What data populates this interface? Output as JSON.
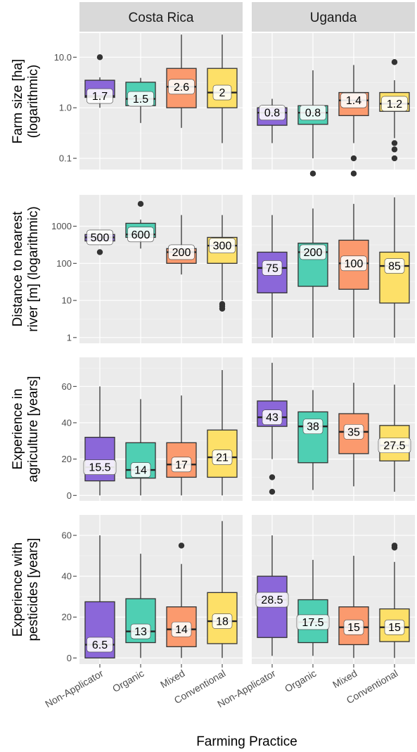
{
  "chart_data": {
    "type": "box",
    "facet_columns": [
      "Costa Rica",
      "Uganda"
    ],
    "xlabel": "Farming Practice",
    "categories": [
      "Non-Applicator",
      "Organic",
      "Mixed",
      "Conventional"
    ],
    "colors": {
      "Non-Applicator": "#8b67d9",
      "Organic": "#4fcfb3",
      "Mixed": "#fb9a6e",
      "Conventional": "#fde068"
    },
    "strip_color": "#d9d9d9",
    "panel_background": "#ebebeb",
    "grid": true,
    "panels": [
      {
        "ylabel": "Farm size [ha] (logarithmic)",
        "ylabel_lines": [
          "Farm size [ha]",
          "(logarithmic)"
        ],
        "scale": "log",
        "ylim": [
          0.06,
          30
        ],
        "ticks": [
          0.1,
          1.0,
          10.0
        ],
        "tick_labels": [
          "0.1",
          "1.0",
          "10.0"
        ],
        "series": {
          "Costa Rica": [
            {
              "category": "Non-Applicator",
              "min": 1.0,
              "q1": 1.6,
              "median": 1.7,
              "q3": 3.5,
              "max": 4.0,
              "outliers": [
                10
              ],
              "label": "1.7"
            },
            {
              "category": "Organic",
              "min": 0.5,
              "q1": 1.1,
              "median": 1.5,
              "q3": 3.2,
              "max": 3.9,
              "outliers": [],
              "label": "1.5"
            },
            {
              "category": "Mixed",
              "min": 0.4,
              "q1": 1.0,
              "median": 2.6,
              "q3": 6.0,
              "max": 28,
              "outliers": [],
              "label": "2.6"
            },
            {
              "category": "Conventional",
              "min": 0.2,
              "q1": 1.0,
              "median": 2.0,
              "q3": 6.0,
              "max": 28,
              "outliers": [],
              "label": "2"
            }
          ],
          "Uganda": [
            {
              "category": "Non-Applicator",
              "min": 0.2,
              "q1": 0.45,
              "median": 0.8,
              "q3": 1.0,
              "max": 1.5,
              "outliers": [],
              "label": "0.8"
            },
            {
              "category": "Organic",
              "min": 0.1,
              "q1": 0.47,
              "median": 0.8,
              "q3": 1.1,
              "max": 5.5,
              "outliers": [
                0.05
              ],
              "label": "0.8"
            },
            {
              "category": "Mixed",
              "min": 0.2,
              "q1": 0.7,
              "median": 1.4,
              "q3": 2.0,
              "max": 7,
              "outliers": [
                0.1,
                0.05
              ],
              "label": "1.4"
            },
            {
              "category": "Conventional",
              "min": 0.25,
              "q1": 0.85,
              "median": 1.2,
              "q3": 2.0,
              "max": 3.5,
              "outliers": [
                8,
                0.2,
                0.15,
                0.1
              ],
              "label": "1.2"
            }
          ]
        }
      },
      {
        "ylabel": "Distance to nearest river [m] (logarithmic)",
        "ylabel_lines": [
          "Distance to nearest",
          "river [m] (logarithmic)"
        ],
        "scale": "log",
        "ylim": [
          0.7,
          7000
        ],
        "ticks": [
          1,
          10,
          100,
          1000
        ],
        "tick_labels": [
          "1",
          "10",
          "100",
          "1000"
        ],
        "series": {
          "Costa Rica": [
            {
              "category": "Non-Applicator",
              "min": 350,
              "q1": 400,
              "median": 500,
              "q3": 600,
              "max": 700,
              "outliers": [
                200
              ],
              "label": "500"
            },
            {
              "category": "Organic",
              "min": 250,
              "q1": 500,
              "median": 600,
              "q3": 1200,
              "max": 1500,
              "outliers": [
                4000
              ],
              "label": "600"
            },
            {
              "category": "Mixed",
              "min": 50,
              "q1": 100,
              "median": 200,
              "q3": 250,
              "max": 2000,
              "outliers": [],
              "label": "200"
            },
            {
              "category": "Conventional",
              "min": 10,
              "q1": 100,
              "median": 300,
              "q3": 500,
              "max": 2000,
              "outliers": [
                8,
                7,
                6
              ],
              "label": "300"
            }
          ],
          "Uganda": [
            {
              "category": "Non-Applicator",
              "min": 1,
              "q1": 16,
              "median": 75,
              "q3": 200,
              "max": 2000,
              "outliers": [],
              "label": "75"
            },
            {
              "category": "Organic",
              "min": 1,
              "q1": 24,
              "median": 200,
              "q3": 350,
              "max": 3000,
              "outliers": [],
              "label": "200"
            },
            {
              "category": "Mixed",
              "min": 1,
              "q1": 20,
              "median": 100,
              "q3": 420,
              "max": 4000,
              "outliers": [],
              "label": "100"
            },
            {
              "category": "Conventional",
              "min": 1,
              "q1": 8.5,
              "median": 85,
              "q3": 200,
              "max": 6000,
              "outliers": [],
              "label": "85"
            }
          ]
        }
      },
      {
        "ylabel": "Experience in agriculture [years]",
        "ylabel_lines": [
          "Experience in",
          "agriculture [years]"
        ],
        "scale": "linear",
        "ylim": [
          -3,
          76
        ],
        "ticks": [
          0,
          20,
          40,
          60
        ],
        "tick_labels": [
          "0",
          "20",
          "40",
          "60"
        ],
        "series": {
          "Costa Rica": [
            {
              "category": "Non-Applicator",
              "min": 0,
              "q1": 8,
              "median": 15.5,
              "q3": 32,
              "max": 60,
              "outliers": [],
              "label": "15.5"
            },
            {
              "category": "Organic",
              "min": 0,
              "q1": 9.5,
              "median": 14,
              "q3": 29,
              "max": 53,
              "outliers": [],
              "label": "14"
            },
            {
              "category": "Mixed",
              "min": 0,
              "q1": 10,
              "median": 17,
              "q3": 29,
              "max": 55,
              "outliers": [],
              "label": "17"
            },
            {
              "category": "Conventional",
              "min": 0,
              "q1": 10,
              "median": 21,
              "q3": 36,
              "max": 69,
              "outliers": [],
              "label": "21"
            }
          ],
          "Uganda": [
            {
              "category": "Non-Applicator",
              "min": 20,
              "q1": 38,
              "median": 43,
              "q3": 52,
              "max": 73,
              "outliers": [
                10,
                2
              ],
              "label": "43"
            },
            {
              "category": "Organic",
              "min": 3,
              "q1": 18,
              "median": 38,
              "q3": 46,
              "max": 58,
              "outliers": [],
              "label": "38"
            },
            {
              "category": "Mixed",
              "min": 5,
              "q1": 23,
              "median": 35,
              "q3": 45,
              "max": 62,
              "outliers": [],
              "label": "35"
            },
            {
              "category": "Conventional",
              "min": 2,
              "q1": 19,
              "median": 27.5,
              "q3": 38.5,
              "max": 61,
              "outliers": [],
              "label": "27.5"
            }
          ]
        }
      },
      {
        "ylabel": "Experience with pesticides [years]",
        "ylabel_lines": [
          "Experience with",
          "pesticides [years]"
        ],
        "scale": "linear",
        "ylim": [
          -3,
          70
        ],
        "ticks": [
          0,
          20,
          40,
          60
        ],
        "tick_labels": [
          "0",
          "20",
          "40",
          "60"
        ],
        "series": {
          "Costa Rica": [
            {
              "category": "Non-Applicator",
              "min": 0,
              "q1": 0,
              "median": 6.5,
              "q3": 27.5,
              "max": 60,
              "outliers": [],
              "label": "6.5"
            },
            {
              "category": "Organic",
              "min": 0,
              "q1": 7.5,
              "median": 13,
              "q3": 29,
              "max": 51,
              "outliers": [],
              "label": "13"
            },
            {
              "category": "Mixed",
              "min": 0,
              "q1": 5.5,
              "median": 14,
              "q3": 25,
              "max": 46,
              "outliers": [
                55
              ],
              "label": "14"
            },
            {
              "category": "Conventional",
              "min": 0,
              "q1": 7,
              "median": 18,
              "q3": 32,
              "max": 67,
              "outliers": [],
              "label": "18"
            }
          ],
          "Uganda": [
            {
              "category": "Non-Applicator",
              "min": 1,
              "q1": 10,
              "median": 28.5,
              "q3": 40,
              "max": 60,
              "outliers": [],
              "label": "28.5"
            },
            {
              "category": "Organic",
              "min": 1,
              "q1": 7.5,
              "median": 17.5,
              "q3": 28.5,
              "max": 48,
              "outliers": [],
              "label": "17.5"
            },
            {
              "category": "Mixed",
              "min": 0,
              "q1": 6.5,
              "median": 15,
              "q3": 25,
              "max": 50,
              "outliers": [],
              "label": "15"
            },
            {
              "category": "Conventional",
              "min": 0,
              "q1": 8,
              "median": 15,
              "q3": 24,
              "max": 47,
              "outliers": [
                55,
                54
              ],
              "label": "15"
            }
          ]
        }
      }
    ]
  }
}
